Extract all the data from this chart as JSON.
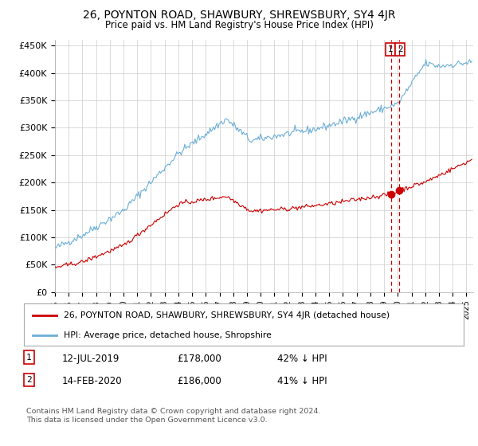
{
  "title": "26, POYNTON ROAD, SHAWBURY, SHREWSBURY, SY4 4JR",
  "subtitle": "Price paid vs. HM Land Registry's House Price Index (HPI)",
  "hpi_color": "#6baed6",
  "price_color": "#cc0000",
  "vline_color": "#cc0000",
  "ylim": [
    0,
    460000
  ],
  "yticks": [
    0,
    50000,
    100000,
    150000,
    200000,
    250000,
    300000,
    350000,
    400000,
    450000
  ],
  "ytick_labels": [
    "£0",
    "£50K",
    "£100K",
    "£150K",
    "£200K",
    "£250K",
    "£300K",
    "£350K",
    "£400K",
    "£450K"
  ],
  "xlim_start": 1995.0,
  "xlim_end": 2025.5,
  "legend_label_red": "26, POYNTON ROAD, SHAWBURY, SHREWSBURY, SY4 4JR (detached house)",
  "legend_label_blue": "HPI: Average price, detached house, Shropshire",
  "transaction1_date": "12-JUL-2019",
  "transaction1_price": "£178,000",
  "transaction1_hpi": "42% ↓ HPI",
  "transaction1_year": 2019.53,
  "transaction2_date": "14-FEB-2020",
  "transaction2_price": "£186,000",
  "transaction2_hpi": "41% ↓ HPI",
  "transaction2_year": 2020.12,
  "footer": "Contains HM Land Registry data © Crown copyright and database right 2024.\nThis data is licensed under the Open Government Licence v3.0.",
  "background_color": "#ffffff",
  "grid_color": "#cccccc"
}
